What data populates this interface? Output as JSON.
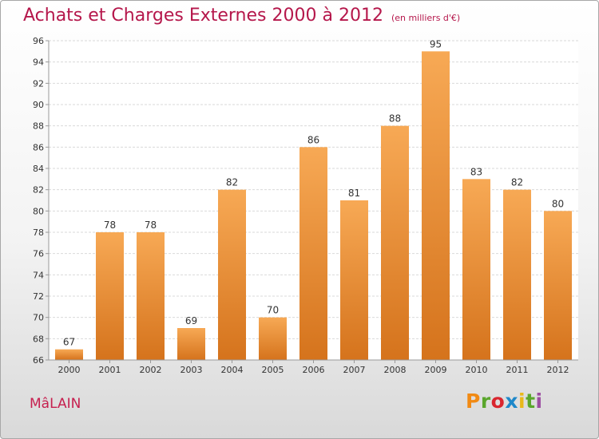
{
  "title": "Achats et Charges Externes 2000 à 2012",
  "subtitle": "(en milliers d'€)",
  "commune": "MâLAIN",
  "logo": {
    "p": "P",
    "r": "r",
    "o": "o",
    "x": "x",
    "i1": "i",
    "t": "t",
    "i2": "i"
  },
  "colors": {
    "bar_light": "#f7a955",
    "bar_dark": "#d5731c",
    "title": "#b5174b"
  },
  "chart_data": {
    "type": "bar",
    "categories": [
      "2000",
      "2001",
      "2002",
      "2003",
      "2004",
      "2005",
      "2006",
      "2007",
      "2008",
      "2009",
      "2010",
      "2011",
      "2012"
    ],
    "values": [
      67,
      78,
      78,
      69,
      82,
      70,
      86,
      81,
      88,
      95,
      83,
      82,
      80
    ],
    "ylim": [
      66,
      96
    ],
    "yticks": [
      66,
      68,
      70,
      72,
      74,
      76,
      78,
      80,
      82,
      84,
      86,
      88,
      90,
      92,
      94,
      96
    ],
    "grid": true,
    "title": "Achats et Charges Externes 2000 à 2012",
    "subtitle": "(en milliers d'€)"
  }
}
